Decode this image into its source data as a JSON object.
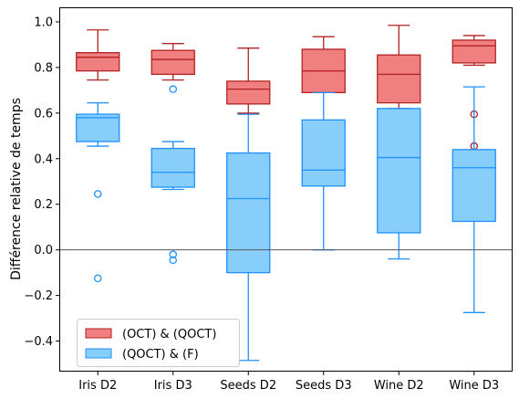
{
  "chart_data": {
    "type": "box",
    "categories": [
      "Iris D2",
      "Iris D3",
      "Seeds D2",
      "Seeds D3",
      "Wine D2",
      "Wine D3"
    ],
    "ylabel": "Différence relative de temps",
    "ylim": [
      -0.53,
      1.06
    ],
    "yticks": [
      -0.4,
      -0.2,
      0.0,
      0.2,
      0.4,
      0.6,
      0.8,
      1.0
    ],
    "ytick_labels": [
      "−0.4",
      "−0.2",
      "0.0",
      "0.2",
      "0.4",
      "0.6",
      "0.8",
      "1.0"
    ],
    "zero_line": 0.0,
    "grid": false,
    "legend": {
      "position": "lower-left"
    },
    "series": [
      {
        "name": "(OCT) & (QOCT)",
        "color": "#f08080",
        "edge_color": "#b22222",
        "boxes": [
          {
            "whisker_low": 0.745,
            "q1": 0.785,
            "median": 0.845,
            "q3": 0.865,
            "whisker_high": 0.965,
            "outliers": []
          },
          {
            "whisker_low": 0.745,
            "q1": 0.77,
            "median": 0.835,
            "q3": 0.875,
            "whisker_high": 0.905,
            "outliers": []
          },
          {
            "whisker_low": 0.6,
            "q1": 0.64,
            "median": 0.705,
            "q3": 0.74,
            "whisker_high": 0.885,
            "outliers": []
          },
          {
            "whisker_low": 0.69,
            "q1": 0.69,
            "median": 0.785,
            "q3": 0.88,
            "whisker_high": 0.935,
            "outliers": []
          },
          {
            "whisker_low": 0.62,
            "q1": 0.645,
            "median": 0.77,
            "q3": 0.855,
            "whisker_high": 0.985,
            "outliers": []
          },
          {
            "whisker_low": 0.81,
            "q1": 0.82,
            "median": 0.895,
            "q3": 0.92,
            "whisker_high": 0.94,
            "outliers": [
              0.595,
              0.455
            ]
          }
        ]
      },
      {
        "name": "(QOCT) & (F)",
        "color": "#87cefa",
        "edge_color": "#1e90ff",
        "boxes": [
          {
            "whisker_low": 0.455,
            "q1": 0.475,
            "median": 0.58,
            "q3": 0.595,
            "whisker_high": 0.645,
            "outliers": [
              0.245,
              -0.125
            ]
          },
          {
            "whisker_low": 0.265,
            "q1": 0.275,
            "median": 0.34,
            "q3": 0.445,
            "whisker_high": 0.475,
            "outliers": [
              0.705,
              -0.02,
              -0.045
            ]
          },
          {
            "whisker_low": -0.485,
            "q1": -0.1,
            "median": 0.225,
            "q3": 0.425,
            "whisker_high": 0.595,
            "outliers": []
          },
          {
            "whisker_low": 0.0,
            "q1": 0.28,
            "median": 0.35,
            "q3": 0.57,
            "whisker_high": 0.69,
            "outliers": []
          },
          {
            "whisker_low": -0.04,
            "q1": 0.075,
            "median": 0.405,
            "q3": 0.62,
            "whisker_high": 0.62,
            "outliers": []
          },
          {
            "whisker_low": -0.275,
            "q1": 0.125,
            "median": 0.36,
            "q3": 0.44,
            "whisker_high": 0.715,
            "outliers": []
          }
        ]
      }
    ]
  }
}
